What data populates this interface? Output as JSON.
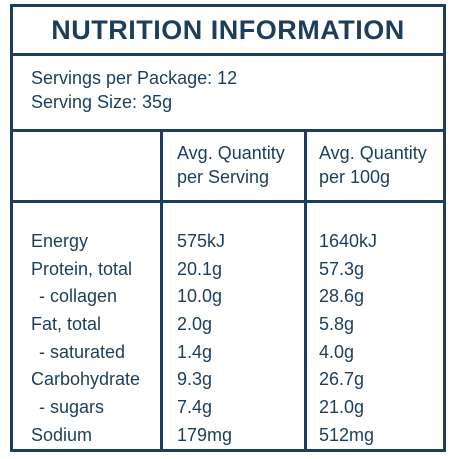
{
  "panel": {
    "title": "NUTRITION INFORMATION",
    "servings_per_package": "Servings per Package: 12",
    "serving_size": "Serving Size: 35g"
  },
  "columns": {
    "per_serving": [
      "Avg. Quantity",
      "per Serving"
    ],
    "per_100g": [
      "Avg. Quantity",
      "per 100g"
    ]
  },
  "nutrients": [
    {
      "name": "Energy",
      "per_serving": "575kJ",
      "per_100g": "1640kJ",
      "sub": false
    },
    {
      "name": "Protein, total",
      "per_serving": "20.1g",
      "per_100g": "57.3g",
      "sub": false
    },
    {
      "name": "- collagen",
      "per_serving": "10.0g",
      "per_100g": "28.6g",
      "sub": true
    },
    {
      "name": "Fat, total",
      "per_serving": "2.0g",
      "per_100g": "5.8g",
      "sub": false
    },
    {
      "name": "- saturated",
      "per_serving": "1.4g",
      "per_100g": "4.0g",
      "sub": true
    },
    {
      "name": "Carbohydrate",
      "per_serving": "9.3g",
      "per_100g": "26.7g",
      "sub": false
    },
    {
      "name": "- sugars",
      "per_serving": "7.4g",
      "per_100g": "21.0g",
      "sub": true
    },
    {
      "name": "Sodium",
      "per_serving": "179mg",
      "per_100g": "512mg",
      "sub": false
    }
  ],
  "colors": {
    "ink": "#1d3e5a",
    "background": "#ffffff"
  }
}
